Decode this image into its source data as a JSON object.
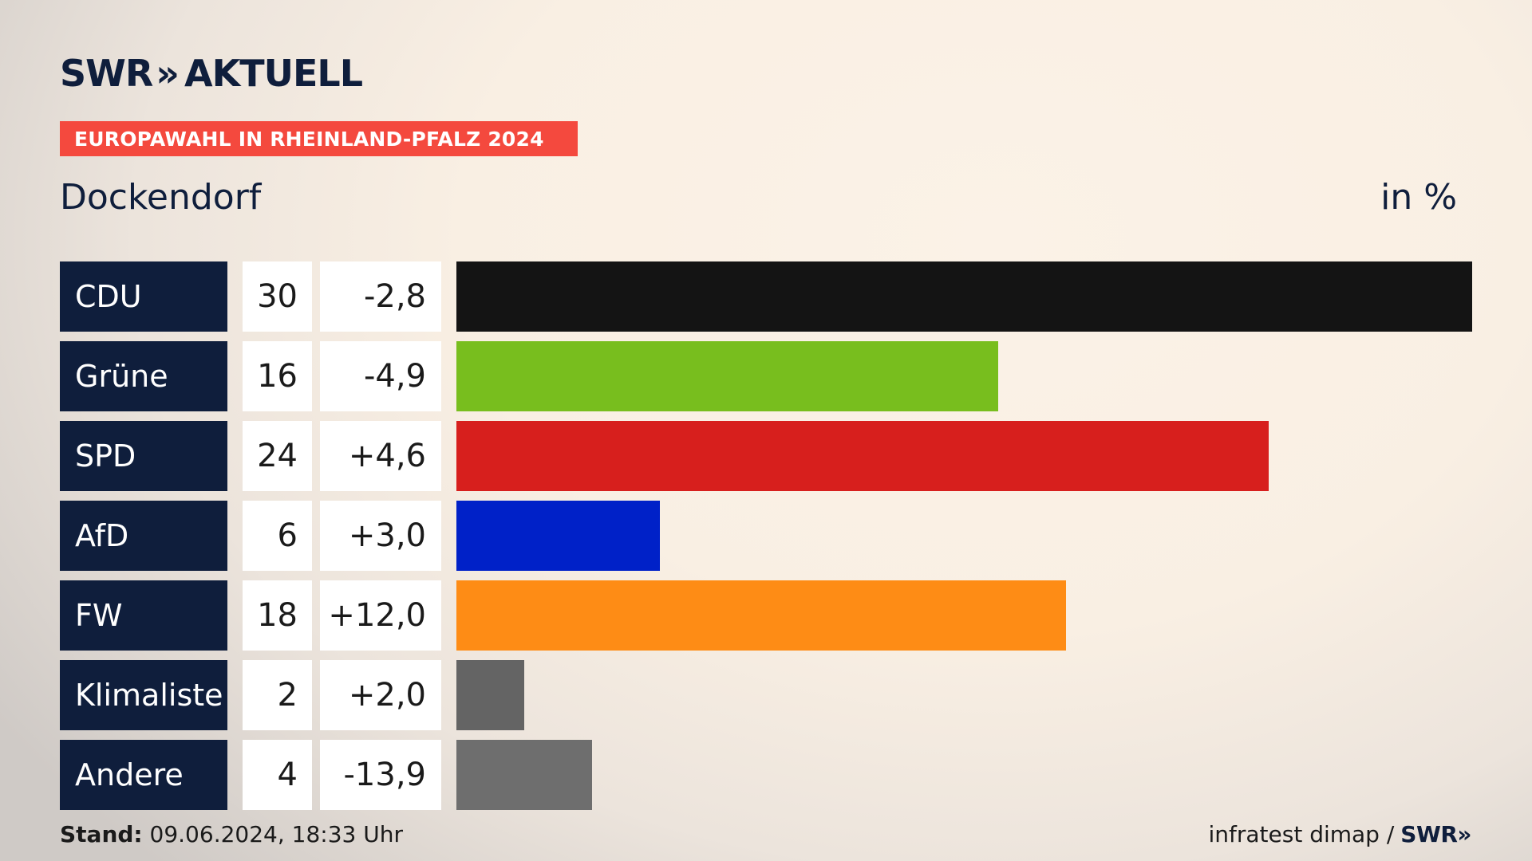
{
  "header": {
    "logo_text": "SWR",
    "logo_chevrons": "»",
    "logo_suffix": "AKTUELL",
    "banner": "EUROPAWAHL IN RHEINLAND-PFALZ 2024",
    "subtitle": "Dockendorf",
    "unit": "in %"
  },
  "chart_data": {
    "type": "bar",
    "orientation": "horizontal",
    "title": "EUROPAWAHL IN RHEINLAND-PFALZ 2024",
    "subtitle": "Dockendorf",
    "unit": "in %",
    "xlim": [
      0,
      30
    ],
    "categories": [
      "CDU",
      "Grüne",
      "SPD",
      "AfD",
      "FW",
      "Klimaliste",
      "Andere"
    ],
    "values": [
      30,
      16,
      24,
      6,
      18,
      2,
      4
    ],
    "value_labels": [
      "30",
      "16",
      "24",
      "6",
      "18",
      "2",
      "4"
    ],
    "diff_labels": [
      "-2,8",
      "-4,9",
      "+4,6",
      "+3,0",
      "+12,0",
      "+2,0",
      "-13,9"
    ],
    "colors": [
      "#141414",
      "#78be1e",
      "#d71f1d",
      "#0021c8",
      "#fe8c15",
      "#646464",
      "#6e6e6e"
    ]
  },
  "footer": {
    "stand_label": "Stand:",
    "stand_value": "09.06.2024, 18:33 Uhr",
    "source": "infratest dimap /",
    "source_logo": "SWR»"
  }
}
